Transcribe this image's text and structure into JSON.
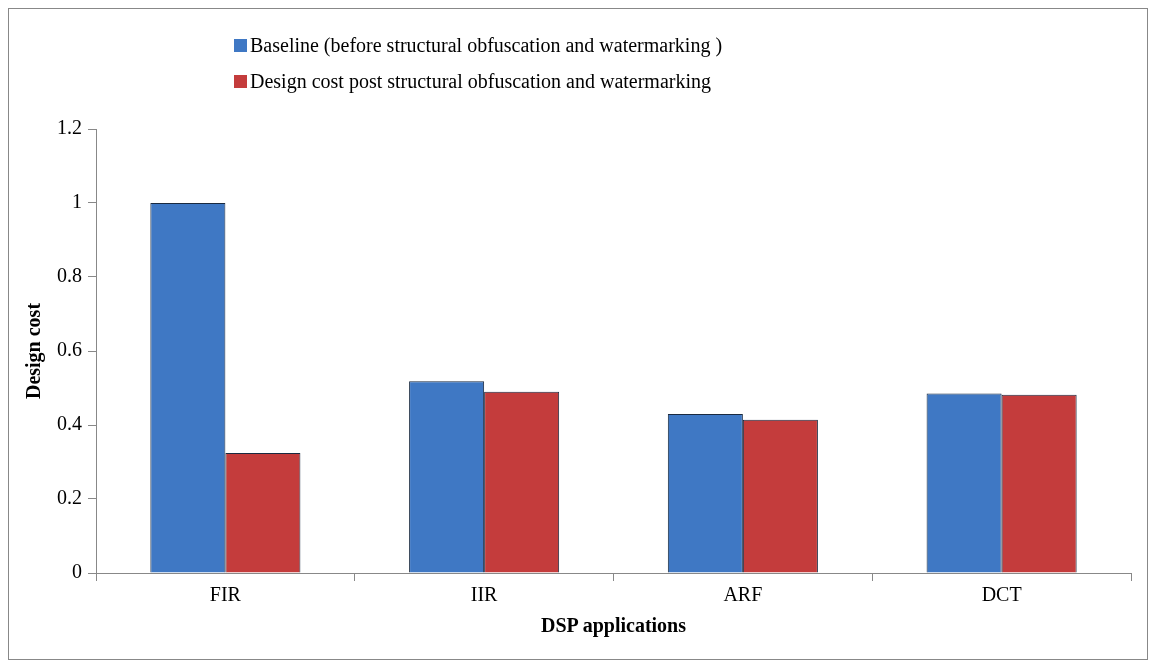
{
  "chart_data": {
    "type": "bar",
    "xlabel": "DSP applications",
    "ylabel": "Design cost",
    "categories": [
      "FIR",
      "IIR",
      "ARF",
      "DCT"
    ],
    "series": [
      {
        "name": "Baseline (before structural obfuscation and watermarking )",
        "color": "#3f78c4",
        "values": [
          1,
          0.518,
          0.43,
          0.485
        ]
      },
      {
        "name": "Design cost post structural obfuscation and watermarking",
        "color": "#c43c3c",
        "values": [
          0.324,
          0.49,
          0.414,
          0.482
        ]
      }
    ],
    "ylim": [
      0,
      1.2
    ],
    "yticks": [
      0,
      0.2,
      0.4,
      0.6,
      0.8,
      1,
      1.2
    ],
    "grid": false,
    "legend": "top"
  }
}
